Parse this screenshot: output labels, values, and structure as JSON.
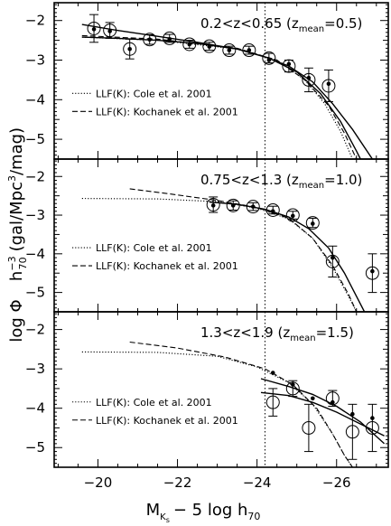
{
  "chart_data": {
    "type": "scatter",
    "xlabel": "M_Ks − 5 log h70",
    "ylabel": "log Φ  h70^−3 (gal/Mpc³/mag)",
    "xlim": [
      -18.9,
      -27.3
    ],
    "xticks": [
      -20,
      -22,
      -24,
      -26
    ],
    "xtick_labels": [
      "−20",
      "−22",
      "−24",
      "−26"
    ],
    "ylim": [
      -2,
      -5.5
    ],
    "yticks": [
      -2,
      -3,
      -4,
      -5
    ],
    "ytick_labels": [
      "−2",
      "−3",
      "−4",
      "−5"
    ],
    "vline_x": -24.2,
    "legend": [
      {
        "label": "LLF(K): Cole et al. 2001",
        "style": "dotted"
      },
      {
        "label": "LLF(K): Kochanek et al. 2001",
        "style": "dashed"
      }
    ],
    "panels": [
      {
        "label_main": "0.2<z<0.65",
        "label_paren": "(z",
        "label_sub": "mean",
        "label_tail": "=0.5)",
        "ylim": [
          -1.55,
          -5.5
        ],
        "circles": [
          {
            "x": -19.9,
            "y": -2.2,
            "err": 0.35
          },
          {
            "x": -20.3,
            "y": -2.25,
            "err": 0.2
          },
          {
            "x": -20.8,
            "y": -2.72,
            "err": 0.25
          },
          {
            "x": -21.3,
            "y": -2.48,
            "err": 0.12
          },
          {
            "x": -21.8,
            "y": -2.45,
            "err": 0.1
          },
          {
            "x": -22.3,
            "y": -2.6,
            "err": 0.1
          },
          {
            "x": -22.8,
            "y": -2.65,
            "err": 0.1
          },
          {
            "x": -23.3,
            "y": -2.75,
            "err": 0.1
          },
          {
            "x": -23.8,
            "y": -2.75,
            "err": 0.1
          },
          {
            "x": -24.3,
            "y": -2.95,
            "err": 0.12
          },
          {
            "x": -24.8,
            "y": -3.15,
            "err": 0.15
          },
          {
            "x": -25.3,
            "y": -3.5,
            "err": 0.3
          },
          {
            "x": -25.8,
            "y": -3.65,
            "err": 0.4
          }
        ],
        "dots": [
          {
            "x": -19.9,
            "y": -2.22
          },
          {
            "x": -20.3,
            "y": -2.27
          },
          {
            "x": -20.8,
            "y": -2.72
          },
          {
            "x": -21.3,
            "y": -2.48
          },
          {
            "x": -21.8,
            "y": -2.47
          },
          {
            "x": -22.3,
            "y": -2.6
          },
          {
            "x": -22.8,
            "y": -2.66
          },
          {
            "x": -23.3,
            "y": -2.75
          },
          {
            "x": -23.8,
            "y": -2.75
          },
          {
            "x": -24.3,
            "y": -3.0
          },
          {
            "x": -24.8,
            "y": -3.1
          },
          {
            "x": -25.3,
            "y": -3.45
          },
          {
            "x": -25.8,
            "y": -3.6
          }
        ],
        "solid_fit": [
          {
            "x": -19.6,
            "y": -2.42
          },
          {
            "x": -20.5,
            "y": -2.45
          },
          {
            "x": -21.5,
            "y": -2.5
          },
          {
            "x": -22.5,
            "y": -2.58
          },
          {
            "x": -23.5,
            "y": -2.72
          },
          {
            "x": -24.2,
            "y": -2.92
          },
          {
            "x": -24.8,
            "y": -3.15
          },
          {
            "x": -25.4,
            "y": -3.55
          },
          {
            "x": -25.9,
            "y": -4.1
          },
          {
            "x": -26.4,
            "y": -4.75
          },
          {
            "x": -26.9,
            "y": -5.5
          }
        ],
        "solid_fit2": [
          {
            "x": -19.6,
            "y": -2.1
          },
          {
            "x": -20.5,
            "y": -2.25
          },
          {
            "x": -21.5,
            "y": -2.4
          },
          {
            "x": -22.5,
            "y": -2.55
          },
          {
            "x": -23.5,
            "y": -2.72
          },
          {
            "x": -24.3,
            "y": -2.95
          },
          {
            "x": -25.0,
            "y": -3.3
          },
          {
            "x": -25.6,
            "y": -3.85
          },
          {
            "x": -26.1,
            "y": -4.55
          },
          {
            "x": -26.5,
            "y": -5.3
          },
          {
            "x": -26.6,
            "y": -5.5
          }
        ],
        "dotted_curve": [
          {
            "x": -19.6,
            "y": -2.42
          },
          {
            "x": -21.5,
            "y": -2.5
          },
          {
            "x": -23.5,
            "y": -2.72
          },
          {
            "x": -24.5,
            "y": -3.0
          },
          {
            "x": -25.2,
            "y": -3.5
          },
          {
            "x": -25.7,
            "y": -4.1
          },
          {
            "x": -26.1,
            "y": -4.8
          },
          {
            "x": -26.4,
            "y": -5.5
          }
        ],
        "dashed_curve": [
          {
            "x": -19.6,
            "y": -2.38
          },
          {
            "x": -21.5,
            "y": -2.47
          },
          {
            "x": -23.5,
            "y": -2.7
          },
          {
            "x": -24.5,
            "y": -3.0
          },
          {
            "x": -25.2,
            "y": -3.5
          },
          {
            "x": -25.8,
            "y": -4.15
          },
          {
            "x": -26.2,
            "y": -4.85
          },
          {
            "x": -26.5,
            "y": -5.5
          }
        ]
      },
      {
        "label_main": "0.75<z<1.3",
        "label_paren": "(z",
        "label_sub": "mean",
        "label_tail": "=1.0)",
        "ylim": [
          -1.55,
          -5.5
        ],
        "circles": [
          {
            "x": -22.9,
            "y": -2.73,
            "err": 0.2
          },
          {
            "x": -23.4,
            "y": -2.75,
            "err": 0.12
          },
          {
            "x": -23.9,
            "y": -2.78,
            "err": 0.1
          },
          {
            "x": -24.4,
            "y": -2.87,
            "err": 0.1
          },
          {
            "x": -24.9,
            "y": -3.0,
            "err": 0.1
          },
          {
            "x": -25.4,
            "y": -3.2,
            "err": 0.12
          },
          {
            "x": -25.9,
            "y": -4.2,
            "err": 0.4
          },
          {
            "x": -26.9,
            "y": -4.5,
            "err": 0.5
          }
        ],
        "dots": [
          {
            "x": -22.9,
            "y": -2.75
          },
          {
            "x": -23.4,
            "y": -2.75
          },
          {
            "x": -23.9,
            "y": -2.78
          },
          {
            "x": -24.4,
            "y": -2.9
          },
          {
            "x": -24.9,
            "y": -3.02
          },
          {
            "x": -25.4,
            "y": -3.22
          },
          {
            "x": -25.9,
            "y": -4.1
          },
          {
            "x": -26.9,
            "y": -4.45
          }
        ],
        "solid_fit": [
          {
            "x": -22.8,
            "y": -2.66
          },
          {
            "x": -23.5,
            "y": -2.72
          },
          {
            "x": -24.2,
            "y": -2.85
          },
          {
            "x": -24.8,
            "y": -3.05
          },
          {
            "x": -25.3,
            "y": -3.35
          },
          {
            "x": -25.8,
            "y": -3.85
          },
          {
            "x": -26.2,
            "y": -4.5
          },
          {
            "x": -26.5,
            "y": -5.1
          },
          {
            "x": -26.7,
            "y": -5.5
          }
        ],
        "solid_fit2": [],
        "dotted_curve": [
          {
            "x": -19.6,
            "y": -2.57
          },
          {
            "x": -21.5,
            "y": -2.58
          },
          {
            "x": -23.0,
            "y": -2.65
          },
          {
            "x": -24.0,
            "y": -2.82
          },
          {
            "x": -24.8,
            "y": -3.1
          },
          {
            "x": -25.4,
            "y": -3.6
          },
          {
            "x": -25.9,
            "y": -4.35
          },
          {
            "x": -26.3,
            "y": -5.1
          },
          {
            "x": -26.5,
            "y": -5.5
          }
        ],
        "dashed_curve": [
          {
            "x": -20.8,
            "y": -2.32
          },
          {
            "x": -21.8,
            "y": -2.45
          },
          {
            "x": -23.0,
            "y": -2.62
          },
          {
            "x": -24.0,
            "y": -2.8
          },
          {
            "x": -24.8,
            "y": -3.08
          },
          {
            "x": -25.4,
            "y": -3.6
          },
          {
            "x": -25.9,
            "y": -4.3
          },
          {
            "x": -26.3,
            "y": -5.05
          },
          {
            "x": -26.5,
            "y": -5.5
          }
        ]
      },
      {
        "label_main": "1.3<z<1.9",
        "label_paren": "(z",
        "label_sub": "mean",
        "label_tail": "=1.5)",
        "ylim": [
          -1.55,
          -5.5
        ],
        "circles": [
          {
            "x": -24.4,
            "y": -3.85,
            "err": 0.35
          },
          {
            "x": -24.9,
            "y": -3.5,
            "err": 0.2
          },
          {
            "x": -25.3,
            "y": -4.5,
            "err": 0.6
          },
          {
            "x": -25.9,
            "y": -3.75,
            "err": 0.2
          },
          {
            "x": -26.4,
            "y": -4.6,
            "err": 0.7
          },
          {
            "x": -26.9,
            "y": -4.5,
            "err": 0.6
          }
        ],
        "dots": [
          {
            "x": -24.4,
            "y": -3.1
          },
          {
            "x": -24.9,
            "y": -3.4
          },
          {
            "x": -25.4,
            "y": -3.75
          },
          {
            "x": -25.9,
            "y": -3.85
          },
          {
            "x": -26.4,
            "y": -4.15
          },
          {
            "x": -26.9,
            "y": -4.25
          }
        ],
        "solid_fit": [
          {
            "x": -24.1,
            "y": -3.25
          },
          {
            "x": -24.8,
            "y": -3.45
          },
          {
            "x": -25.4,
            "y": -3.65
          },
          {
            "x": -26.0,
            "y": -3.95
          },
          {
            "x": -26.6,
            "y": -4.35
          },
          {
            "x": -27.2,
            "y": -4.9
          }
        ],
        "solid_fit2": [
          {
            "x": -24.1,
            "y": -3.6
          },
          {
            "x": -24.8,
            "y": -3.68
          },
          {
            "x": -25.4,
            "y": -3.85
          },
          {
            "x": -26.0,
            "y": -4.1
          },
          {
            "x": -26.6,
            "y": -4.4
          },
          {
            "x": -27.2,
            "y": -4.7
          }
        ],
        "dotted_curve": [
          {
            "x": -19.6,
            "y": -2.57
          },
          {
            "x": -21.5,
            "y": -2.58
          },
          {
            "x": -23.0,
            "y": -2.68
          },
          {
            "x": -24.0,
            "y": -2.95
          },
          {
            "x": -24.8,
            "y": -3.35
          },
          {
            "x": -25.4,
            "y": -3.9
          },
          {
            "x": -25.9,
            "y": -4.65
          },
          {
            "x": -26.2,
            "y": -5.2
          },
          {
            "x": -26.4,
            "y": -5.5
          }
        ],
        "dashed_curve": [
          {
            "x": -20.8,
            "y": -2.32
          },
          {
            "x": -22.0,
            "y": -2.47
          },
          {
            "x": -23.2,
            "y": -2.7
          },
          {
            "x": -24.2,
            "y": -3.0
          },
          {
            "x": -24.9,
            "y": -3.4
          },
          {
            "x": -25.5,
            "y": -4.0
          },
          {
            "x": -25.9,
            "y": -4.65
          },
          {
            "x": -26.2,
            "y": -5.2
          },
          {
            "x": -26.4,
            "y": -5.5
          }
        ]
      }
    ]
  }
}
